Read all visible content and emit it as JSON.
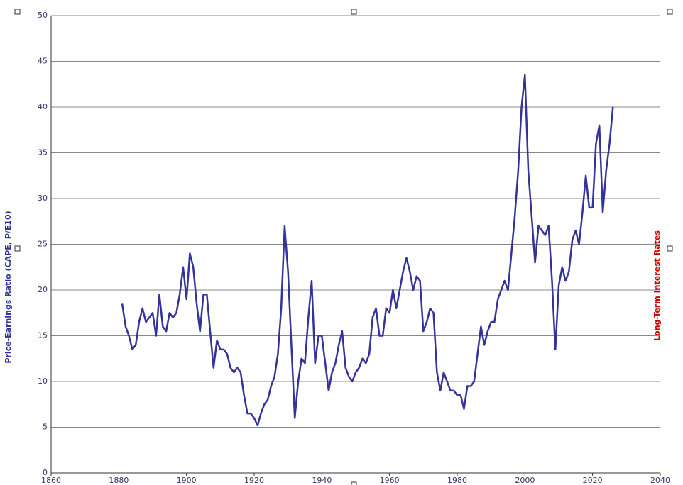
{
  "chart_data": {
    "type": "line",
    "ylabel": "Price-Earnings Ratio (CAPE, P/E10)",
    "y2label": "Long-Term Interest Rates",
    "color": "#333399",
    "xlim": [
      1860,
      2040
    ],
    "xticks": [
      1860,
      1880,
      1900,
      1920,
      1940,
      1960,
      1980,
      2000,
      2020,
      2040
    ],
    "ylim": [
      0,
      50
    ],
    "yticks": [
      0,
      5,
      10,
      15,
      20,
      25,
      30,
      35,
      40,
      45,
      50
    ],
    "grid": true,
    "x": [
      1881,
      1882,
      1883,
      1884,
      1885,
      1886,
      1887,
      1888,
      1889,
      1890,
      1891,
      1892,
      1893,
      1894,
      1895,
      1896,
      1897,
      1898,
      1899,
      1900,
      1901,
      1902,
      1903,
      1904,
      1905,
      1906,
      1907,
      1908,
      1909,
      1910,
      1911,
      1912,
      1913,
      1914,
      1915,
      1916,
      1917,
      1918,
      1919,
      1920,
      1921,
      1922,
      1923,
      1924,
      1925,
      1926,
      1927,
      1928,
      1929,
      1930,
      1931,
      1932,
      1933,
      1934,
      1935,
      1936,
      1937,
      1938,
      1939,
      1940,
      1941,
      1942,
      1943,
      1944,
      1945,
      1946,
      1947,
      1948,
      1949,
      1950,
      1951,
      1952,
      1953,
      1954,
      1955,
      1956,
      1957,
      1958,
      1959,
      1960,
      1961,
      1962,
      1963,
      1964,
      1965,
      1966,
      1967,
      1968,
      1969,
      1970,
      1971,
      1972,
      1973,
      1974,
      1975,
      1976,
      1977,
      1978,
      1979,
      1980,
      1981,
      1982,
      1983,
      1984,
      1985,
      1986,
      1987,
      1988,
      1989,
      1990,
      1991,
      1992,
      1993,
      1994,
      1995,
      1996,
      1997,
      1998,
      1999,
      2000,
      2001,
      2002,
      2003,
      2004,
      2005,
      2006,
      2007,
      2008,
      2009,
      2010,
      2011,
      2012,
      2013,
      2014,
      2015,
      2016,
      2017,
      2018,
      2019,
      2020,
      2021,
      2022,
      2023,
      2024,
      2025,
      2026
    ],
    "values": [
      18.5,
      16,
      15,
      13.5,
      14,
      16.5,
      18,
      16.5,
      17,
      17.5,
      15,
      19.5,
      16,
      15.5,
      17.5,
      17,
      17.5,
      19.5,
      22.5,
      19,
      24,
      22.5,
      18.5,
      15.5,
      19.5,
      19.5,
      15.5,
      11.5,
      14.5,
      13.5,
      13.5,
      13,
      11.5,
      11,
      11.5,
      11,
      8.5,
      6.5,
      6.5,
      6,
      5.2,
      6.5,
      7.5,
      8,
      9.5,
      10.5,
      13,
      18,
      27,
      22,
      14,
      6,
      10,
      12.5,
      12,
      17,
      21,
      12,
      15,
      15,
      12,
      9,
      11,
      12,
      14,
      15.5,
      11.5,
      10.5,
      10,
      11,
      11.5,
      12.5,
      12,
      13,
      17,
      18,
      15,
      15,
      18,
      17.5,
      20,
      18,
      20,
      22,
      23.5,
      22,
      20,
      21.5,
      21,
      15.5,
      16.5,
      18,
      17.5,
      11,
      9,
      11,
      10,
      9,
      9,
      8.5,
      8.5,
      7,
      9.5,
      9.5,
      10,
      13,
      16,
      14,
      15.5,
      16.5,
      16.5,
      19,
      20,
      21,
      20,
      24,
      28,
      33,
      40,
      43.5,
      33,
      28,
      23,
      27,
      26.5,
      26,
      27,
      21,
      13.5,
      20.5,
      22.5,
      21,
      22,
      25.5,
      26.5,
      25,
      28.5,
      32.5,
      29,
      29,
      36,
      38,
      28.5,
      33,
      36,
      40
    ]
  }
}
